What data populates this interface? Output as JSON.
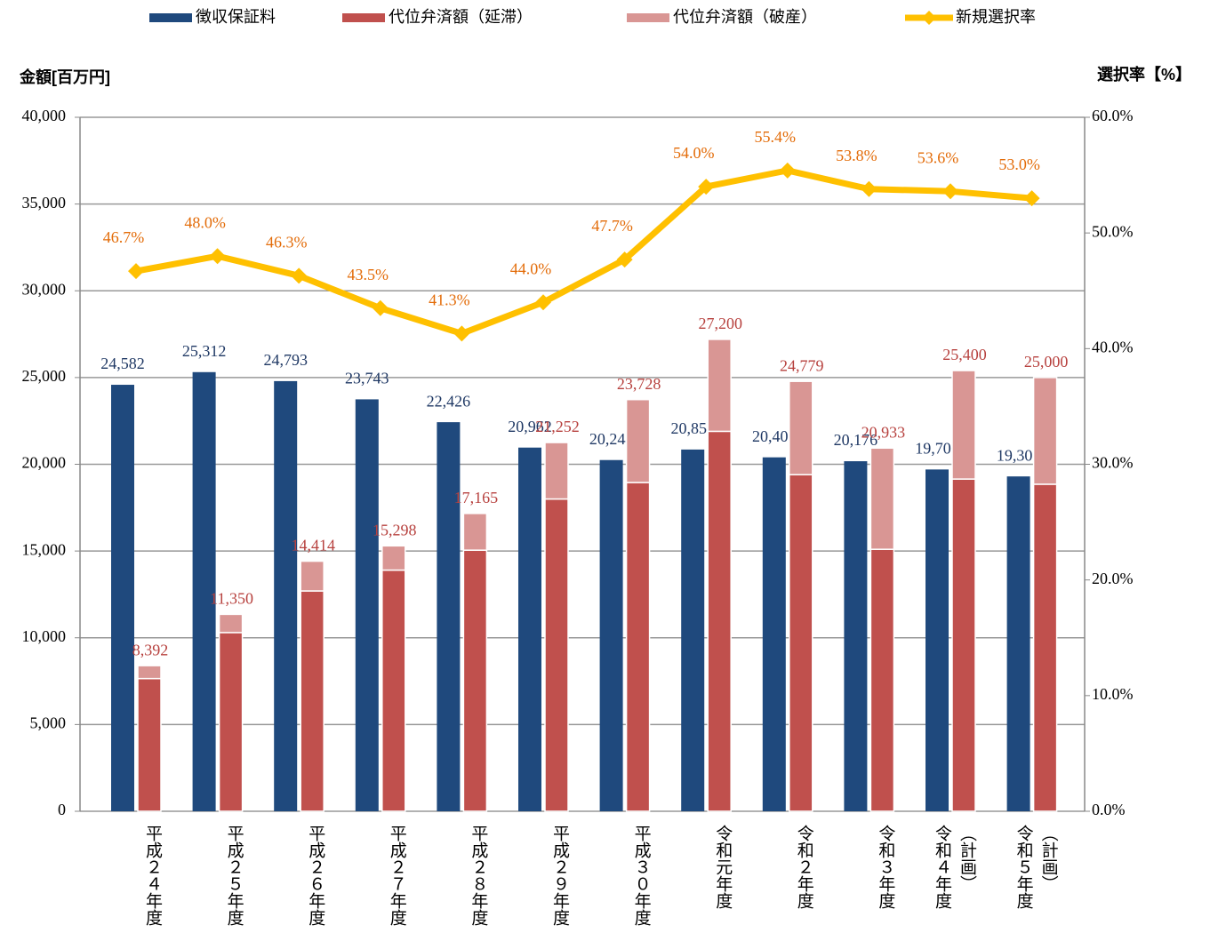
{
  "chart_data": {
    "type": "bar",
    "y_axis_label": "金額[百万円]",
    "y2_axis_label": "選択率【%】",
    "categories": [
      "平成２４年度",
      "平成２５年度",
      "平成２６年度",
      "平成２７年度",
      "平成２８年度",
      "平成２９年度",
      "平成３０年度",
      "令和元年度",
      "令和２年度",
      "令和３年度",
      "令和４年度（計画）",
      "令和５年度（計画）"
    ],
    "series": [
      {
        "name": "徴収保証料",
        "type": "bar",
        "color": "#1f497d",
        "label_color": "#1f3864",
        "values": [
          24582,
          25312,
          24793,
          23743,
          22426,
          20962,
          20244,
          20850,
          20400,
          20176,
          19700,
          19300
        ],
        "value_labels": [
          "24,582",
          "25,312",
          "24,793",
          "23,743",
          "22,426",
          "20,962",
          "20,244",
          "20,850",
          "20,400",
          "20,176",
          "19,700",
          "19,300"
        ]
      },
      {
        "name": "代位弁済額（延滞）",
        "type": "stacked",
        "color": "#c0504d",
        "values": [
          7650,
          10300,
          12700,
          13900,
          15050,
          18000,
          18950,
          21900,
          19400,
          15100,
          19150,
          18850
        ]
      },
      {
        "name": "代位弁済額（破産）",
        "type": "stacked",
        "color": "#d99694",
        "values": [
          742,
          1050,
          1714,
          1398,
          2115,
          3252,
          4778,
          5300,
          5379,
          5833,
          6250,
          6150
        ]
      },
      {
        "name": "新規選択率",
        "type": "line",
        "axis": "y2",
        "color": "#ffc000",
        "label_color": "#e36c09",
        "values": [
          46.7,
          48.0,
          46.3,
          43.5,
          41.3,
          44.0,
          47.7,
          54.0,
          55.4,
          53.8,
          53.6,
          53.0
        ],
        "value_labels": [
          "46.7%",
          "48.0%",
          "46.3%",
          "43.5%",
          "41.3%",
          "44.0%",
          "47.7%",
          "54.0%",
          "55.4%",
          "53.8%",
          "53.6%",
          "53.0%"
        ]
      }
    ],
    "stack_totals": {
      "label_color": "#b7413e",
      "values": [
        8392,
        11350,
        14414,
        15298,
        17165,
        21252,
        23728,
        27200,
        24779,
        20933,
        25400,
        25000
      ],
      "value_labels": [
        "8,392",
        "11,350",
        "14,414",
        "15,298",
        "17,165",
        "21,252",
        "23,728",
        "27,200",
        "24,779",
        "20,933",
        "25,400",
        "25,000"
      ]
    },
    "ylim": [
      0,
      40000
    ],
    "yticks": [
      {
        "value": 0,
        "label": "0"
      },
      {
        "value": 5000,
        "label": "5,000"
      },
      {
        "value": 10000,
        "label": "10,000"
      },
      {
        "value": 15000,
        "label": "15,000"
      },
      {
        "value": 20000,
        "label": "20,000"
      },
      {
        "value": 25000,
        "label": "25,000"
      },
      {
        "value": 30000,
        "label": "30,000"
      },
      {
        "value": 35000,
        "label": "35,000"
      },
      {
        "value": 40000,
        "label": "40,000"
      }
    ],
    "y2lim": [
      0,
      60
    ],
    "y2ticks": [
      {
        "value": 0,
        "label": "0.0%"
      },
      {
        "value": 10,
        "label": "10.0%"
      },
      {
        "value": 20,
        "label": "20.0%"
      },
      {
        "value": 30,
        "label": "30.0%"
      },
      {
        "value": 40,
        "label": "40.0%"
      },
      {
        "value": 50,
        "label": "50.0%"
      },
      {
        "value": 60,
        "label": "60.0%"
      }
    ],
    "grid": true,
    "legend": "top"
  }
}
